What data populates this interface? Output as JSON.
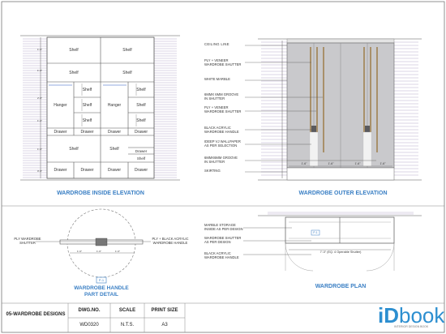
{
  "inside_elevation": {
    "title": "WARDROBE INSIDE ELEVATION",
    "shelf_label": "Shelf",
    "hanger_label": "Hanger",
    "drawer_label": "Drawer"
  },
  "outer_elevation": {
    "title": "WARDROBE OUTER ELEVATION",
    "notes": [
      "CEILING LINE",
      "PLY + VENEER",
      "WARDROBE SHUTTER",
      "WHITE MARBLE",
      "6MMX 6MM GROOVE",
      "IN SHUTTER",
      "PLY + VENEER",
      "WARDROBE SHUTTER",
      "BLACK ACRYLIC",
      "WARDROBE HANDLE",
      "IDEEP VJ WALLPAPER",
      "AS PER SELECTION",
      "6MMX6MM GROOVE",
      "IN SHUTTER",
      "SKIRTING"
    ],
    "dims": [
      "1'-6\"",
      "1'-6\"",
      "1'-6\"",
      "1'-6\""
    ]
  },
  "handle_detail": {
    "title_line1": "WARDROBE HANDLE",
    "title_line2": "PART DETAIL",
    "tag": "P-1",
    "left_note": [
      "PLY WARDROBE",
      "SHUTTER"
    ],
    "right_note": [
      "PLY + BLACK ACRYLIC",
      "WARDROBE HANDLE"
    ]
  },
  "plan": {
    "title": "WARDROBE PLAN",
    "tag": "P-1",
    "notes": [
      "MARBLE STORAGE",
      "INSIDE AS PER DESIGN",
      "WARDROBE SHUTTER",
      "AS PER DESIGN",
      "BLACK ACRYLIC",
      "WARDROBE HANDLE"
    ],
    "span_dim": "7'-3\" (EQ. 4 Operable Shutter)"
  },
  "title_block": {
    "sheet_name": "05-WARDROBE DESIGNS",
    "headers": [
      "DWG.NO.",
      "SCALE",
      "PRINT SIZE"
    ],
    "values": [
      "WD0320",
      "N.T.S.",
      "A3"
    ]
  },
  "logo": {
    "mark": "iD",
    "word": "book",
    "tagline": "INTERIOR DESIGN BOOK"
  },
  "colors": {
    "accent_blue": "#3a7fc4",
    "line": "#555555",
    "shutter_fill": "#c9c9cc",
    "handle_brown": "#a8906a",
    "hatch_purple": "#9a8fb8"
  }
}
